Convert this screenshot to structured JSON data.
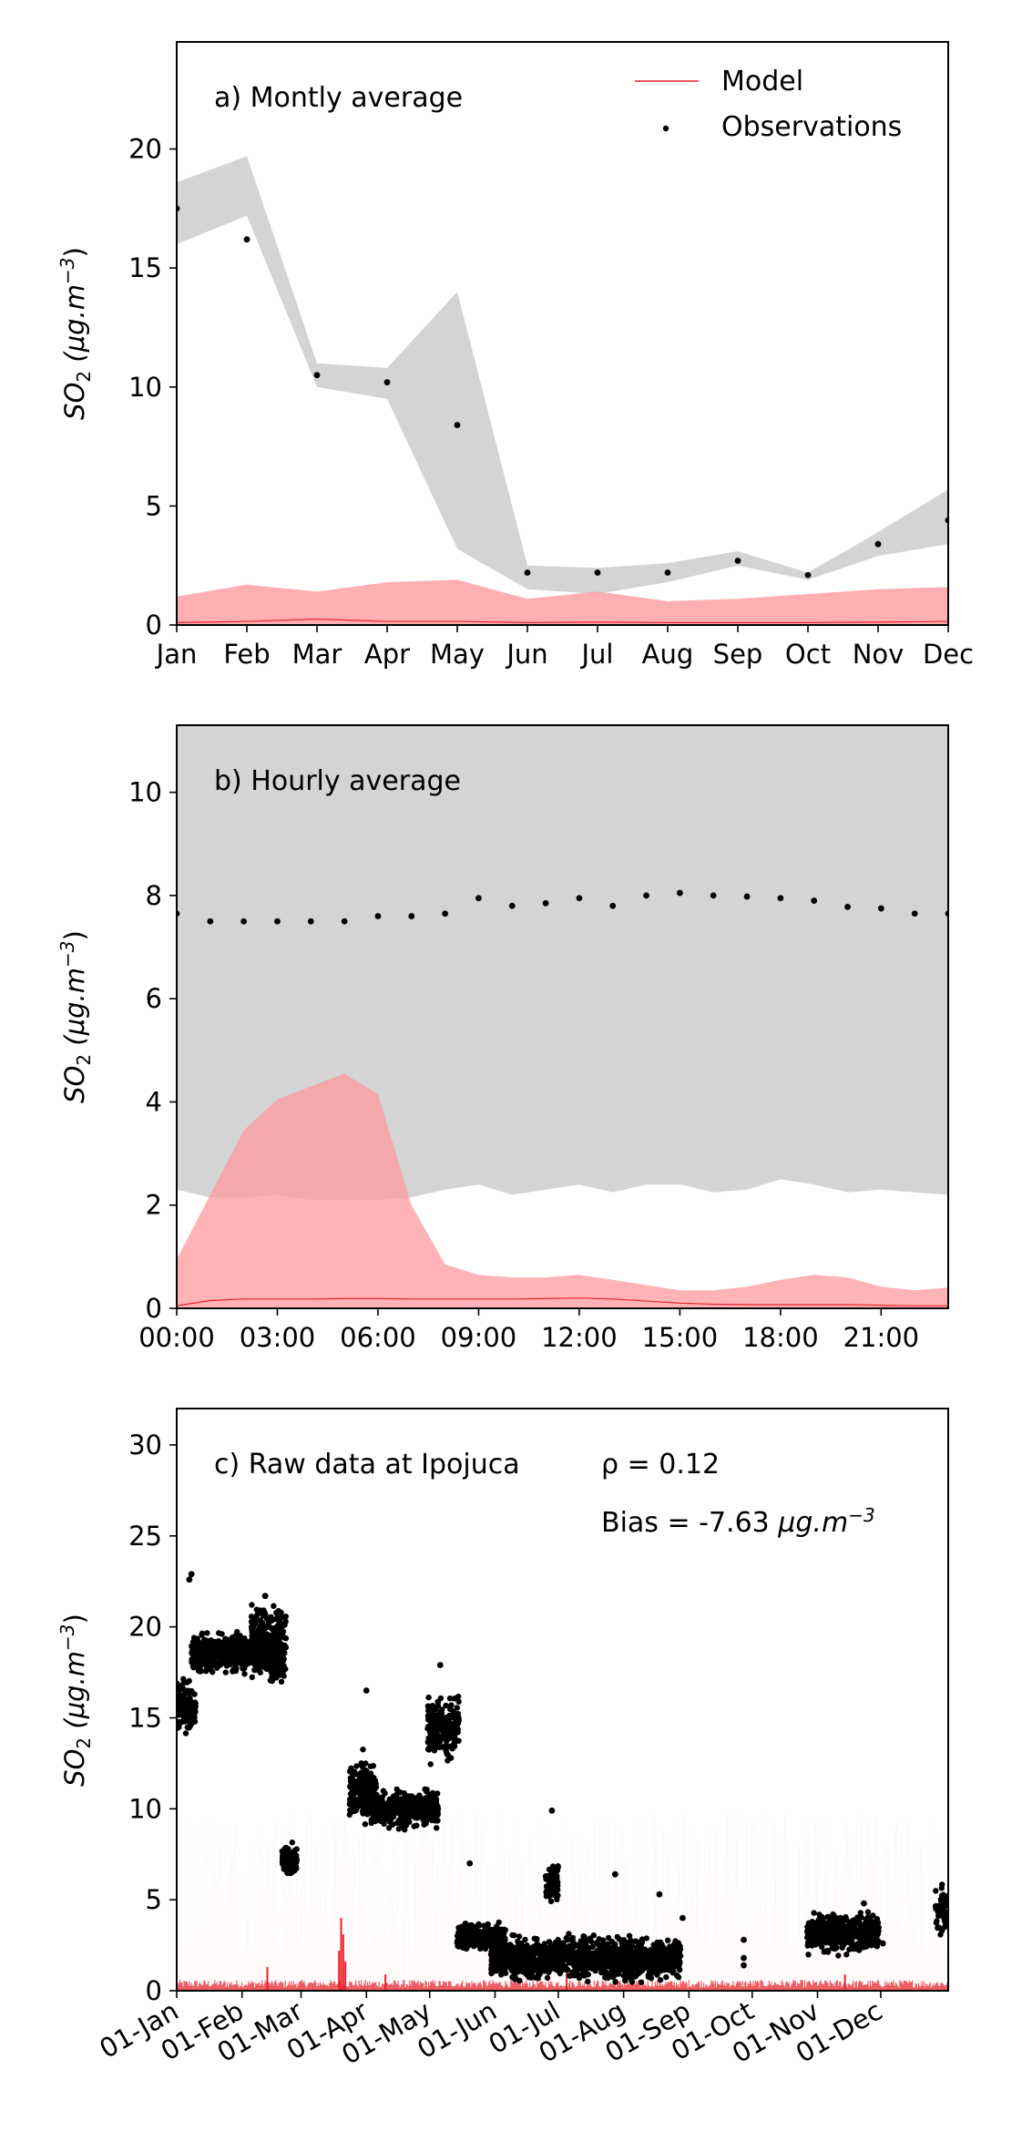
{
  "colors": {
    "model_line": "#e8232a",
    "model_band": "#ff9a9d",
    "obs_band": "#d4d4d4",
    "observations": "#000000",
    "axes": "#000000"
  },
  "chart_data": [
    {
      "type": "line",
      "panel": "a",
      "annotation": "a) Montly average",
      "ylabel_base": "SO",
      "ylabel_sub": "2",
      "ylabel_units": "(μg.m",
      "ylabel_sup": "−3",
      "ylabel_close": ")",
      "legend": {
        "placement": "top-right",
        "model_label": "Model",
        "obs_label": "Observations"
      },
      "x_tick_labels": [
        "Jan",
        "Feb",
        "Mar",
        "Apr",
        "May",
        "Jun",
        "Jul",
        "Aug",
        "Sep",
        "Oct",
        "Nov",
        "Dec"
      ],
      "y_ticks": [
        0,
        5,
        10,
        15,
        20
      ],
      "ylim": [
        0,
        24.5
      ],
      "series": [
        {
          "name": "Observations",
          "kind": "points",
          "values": [
            17.5,
            16.2,
            10.5,
            10.2,
            8.4,
            2.2,
            2.2,
            2.2,
            2.7,
            2.1,
            3.4,
            4.4
          ]
        },
        {
          "name": "Model",
          "kind": "line",
          "values": [
            0.1,
            0.15,
            0.25,
            0.15,
            0.15,
            0.1,
            0.12,
            0.1,
            0.1,
            0.1,
            0.12,
            0.15
          ]
        },
        {
          "kind": "band",
          "role": "observation spread",
          "lower": [
            16.0,
            17.2,
            10.0,
            9.5,
            3.2,
            1.5,
            1.3,
            1.8,
            2.5,
            1.9,
            2.9,
            3.4
          ],
          "upper": [
            18.6,
            19.7,
            11.0,
            10.8,
            14.0,
            2.5,
            2.4,
            2.6,
            3.1,
            2.2,
            3.9,
            5.7
          ]
        },
        {
          "kind": "band",
          "role": "model spread",
          "lower": [
            0,
            0,
            0,
            0,
            0,
            0,
            0,
            0,
            0,
            0,
            0,
            0
          ],
          "upper": [
            1.2,
            1.7,
            1.4,
            1.8,
            1.9,
            1.1,
            1.4,
            1.0,
            1.1,
            1.3,
            1.5,
            1.6
          ]
        }
      ]
    },
    {
      "type": "line",
      "panel": "b",
      "annotation": "b) Hourly average",
      "ylabel_base": "SO",
      "ylabel_sub": "2",
      "ylabel_units": "(μg.m",
      "ylabel_sup": "−3",
      "ylabel_close": ")",
      "x_tick_labels": [
        "00:00",
        "03:00",
        "06:00",
        "09:00",
        "12:00",
        "15:00",
        "18:00",
        "21:00"
      ],
      "x_tick_hours": [
        0,
        3,
        6,
        9,
        12,
        15,
        18,
        21
      ],
      "x": [
        0,
        1,
        2,
        3,
        4,
        5,
        6,
        7,
        8,
        9,
        10,
        11,
        12,
        13,
        14,
        15,
        16,
        17,
        18,
        19,
        20,
        21,
        22,
        23
      ],
      "xlim": [
        0,
        23
      ],
      "y_ticks": [
        0,
        2,
        4,
        6,
        8,
        10
      ],
      "ylim": [
        0,
        11.3
      ],
      "series": [
        {
          "name": "Observations",
          "kind": "points",
          "values": [
            7.65,
            7.5,
            7.5,
            7.5,
            7.5,
            7.5,
            7.6,
            7.6,
            7.65,
            7.95,
            7.8,
            7.85,
            7.95,
            7.8,
            8.0,
            8.05,
            8.0,
            7.98,
            7.95,
            7.9,
            7.78,
            7.75,
            7.65,
            7.65
          ]
        },
        {
          "name": "Model",
          "kind": "line",
          "values": [
            0.05,
            0.15,
            0.18,
            0.18,
            0.18,
            0.19,
            0.19,
            0.18,
            0.18,
            0.18,
            0.18,
            0.19,
            0.2,
            0.18,
            0.14,
            0.1,
            0.08,
            0.07,
            0.07,
            0.07,
            0.07,
            0.06,
            0.05,
            0.05
          ]
        },
        {
          "kind": "band",
          "role": "observation spread",
          "lower": [
            2.3,
            2.15,
            2.15,
            2.2,
            2.1,
            2.1,
            2.1,
            2.15,
            2.3,
            2.4,
            2.2,
            2.3,
            2.4,
            2.25,
            2.4,
            2.4,
            2.25,
            2.3,
            2.5,
            2.4,
            2.25,
            2.3,
            2.25,
            2.2
          ],
          "upper": [
            11.3,
            11.3,
            11.3,
            11.3,
            11.3,
            11.3,
            11.3,
            11.3,
            11.3,
            11.3,
            11.3,
            11.3,
            11.3,
            11.3,
            11.3,
            11.3,
            11.3,
            11.3,
            11.3,
            11.3,
            11.3,
            11.3,
            11.3,
            11.3
          ]
        },
        {
          "kind": "band",
          "role": "model spread",
          "lower": [
            0,
            0,
            0,
            0,
            0,
            0,
            0,
            0,
            0,
            0,
            0,
            0,
            0,
            0,
            0,
            0,
            0,
            0,
            0,
            0,
            0,
            0,
            0,
            0
          ],
          "upper": [
            0.95,
            2.2,
            3.45,
            4.05,
            4.3,
            4.55,
            4.15,
            2.0,
            0.85,
            0.65,
            0.6,
            0.6,
            0.65,
            0.55,
            0.45,
            0.35,
            0.35,
            0.42,
            0.55,
            0.65,
            0.6,
            0.42,
            0.35,
            0.4
          ]
        }
      ]
    },
    {
      "type": "scatter",
      "panel": "c",
      "annotation": "c) Raw data at Ipojuca",
      "stat_rho": "ρ = 0.12",
      "stat_bias_prefix": "Bias = -7.63 ",
      "stat_bias_units": "μg.m",
      "stat_bias_sup": "−3",
      "ylabel_base": "SO",
      "ylabel_sub": "2",
      "ylabel_units": "(μg.m",
      "ylabel_sup": "−3",
      "ylabel_close": ")",
      "x_tick_labels": [
        "01-Jan",
        "01-Feb",
        "01-Mar",
        "01-Apr",
        "01-May",
        "01-Jun",
        "01-Jul",
        "01-Aug",
        "01-Sep",
        "01-Oct",
        "01-Nov",
        "01-Dec"
      ],
      "x_tick_days": [
        1,
        32,
        60,
        91,
        121,
        152,
        182,
        213,
        244,
        274,
        305,
        335
      ],
      "xlim": [
        1,
        367
      ],
      "y_ticks": [
        0,
        5,
        10,
        15,
        20,
        25,
        30
      ],
      "ylim": [
        0,
        32
      ],
      "observation_clusters": [
        {
          "start_day": 1,
          "end_day": 10,
          "mean": 15.5,
          "spread": 1.2
        },
        {
          "start_day": 8,
          "end_day": 46,
          "mean": 18.5,
          "spread": 0.9
        },
        {
          "start_day": 36,
          "end_day": 53,
          "mean": 19.5,
          "spread": 1.4
        },
        {
          "start_day": 45,
          "end_day": 52,
          "mean": 17.8,
          "spread": 0.8
        },
        {
          "start_day": 51,
          "end_day": 58,
          "mean": 7.2,
          "spread": 0.7
        },
        {
          "start_day": 83,
          "end_day": 96,
          "mean": 11.0,
          "spread": 1.5
        },
        {
          "start_day": 93,
          "end_day": 125,
          "mean": 10.0,
          "spread": 0.8
        },
        {
          "start_day": 120,
          "end_day": 135,
          "mean": 14.5,
          "spread": 1.5
        },
        {
          "start_day": 134,
          "end_day": 157,
          "mean": 3.0,
          "spread": 0.6
        },
        {
          "start_day": 150,
          "end_day": 182,
          "mean": 1.8,
          "spread": 1.0
        },
        {
          "start_day": 176,
          "end_day": 182,
          "mean": 6.0,
          "spread": 1.0
        },
        {
          "start_day": 182,
          "end_day": 240,
          "mean": 1.8,
          "spread": 1.0
        },
        {
          "start_day": 300,
          "end_day": 334,
          "mean": 3.2,
          "spread": 0.9
        },
        {
          "start_day": 361,
          "end_day": 366,
          "mean": 4.5,
          "spread": 1.2
        }
      ],
      "observation_points": [
        {
          "day": 7,
          "value": 22.6
        },
        {
          "day": 8,
          "value": 22.9
        },
        {
          "day": 43,
          "value": 21.7
        },
        {
          "day": 91,
          "value": 16.5
        },
        {
          "day": 126,
          "value": 17.9
        },
        {
          "day": 140,
          "value": 7.0
        },
        {
          "day": 179,
          "value": 9.9
        },
        {
          "day": 209,
          "value": 6.4
        },
        {
          "day": 230,
          "value": 5.3
        },
        {
          "day": 241,
          "value": 4.0
        },
        {
          "day": 270,
          "value": 2.8
        },
        {
          "day": 270,
          "value": 1.8
        },
        {
          "day": 270,
          "value": 1.4
        },
        {
          "day": 336,
          "value": 2.6
        },
        {
          "day": 327,
          "value": 4.8
        }
      ],
      "model_typical_max": 0.6,
      "model_spikes": [
        {
          "day": 44,
          "value": 1.3
        },
        {
          "day": 78,
          "value": 2.2
        },
        {
          "day": 79,
          "value": 4.0
        },
        {
          "day": 80,
          "value": 3.1
        },
        {
          "day": 81,
          "value": 1.6
        },
        {
          "day": 100,
          "value": 0.9
        },
        {
          "day": 186,
          "value": 1.2
        },
        {
          "day": 318,
          "value": 0.9
        }
      ]
    }
  ]
}
